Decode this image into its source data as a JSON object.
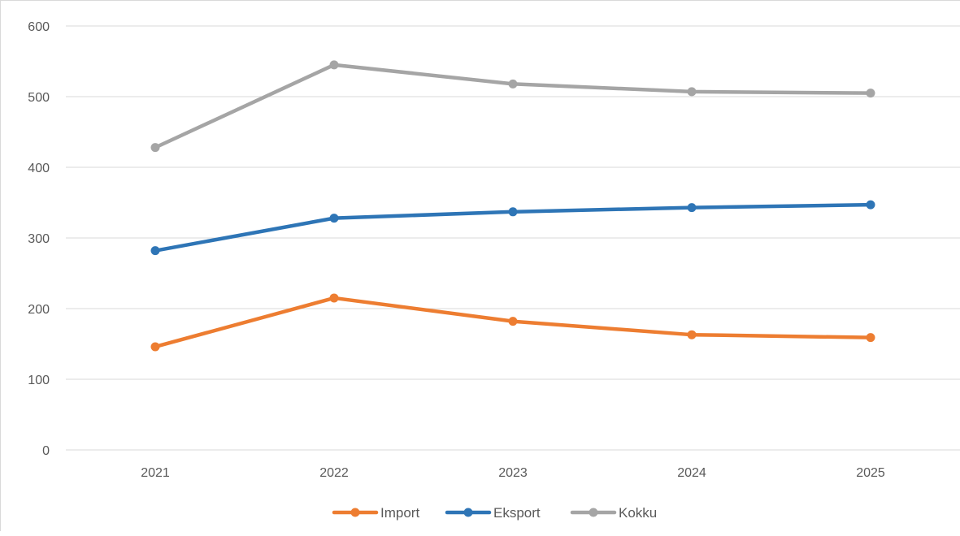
{
  "chart_data": {
    "type": "line",
    "title": "",
    "xlabel": "",
    "ylabel": "",
    "categories": [
      "2021",
      "2022",
      "2023",
      "2024",
      "2025"
    ],
    "y_ticks": [
      "0",
      "100",
      "200",
      "300",
      "400",
      "500",
      "600"
    ],
    "ylim": [
      0,
      600
    ],
    "grid": "horizontal",
    "legend_position": "bottom",
    "series": [
      {
        "name": "Import",
        "color": "#ED7D31",
        "values": [
          146,
          215,
          182,
          163,
          159
        ]
      },
      {
        "name": "Eksport",
        "color": "#2E75B6",
        "values": [
          282,
          328,
          337,
          343,
          347
        ]
      },
      {
        "name": "Kokku",
        "color": "#A5A5A5",
        "values": [
          428,
          545,
          518,
          507,
          505
        ]
      }
    ]
  }
}
